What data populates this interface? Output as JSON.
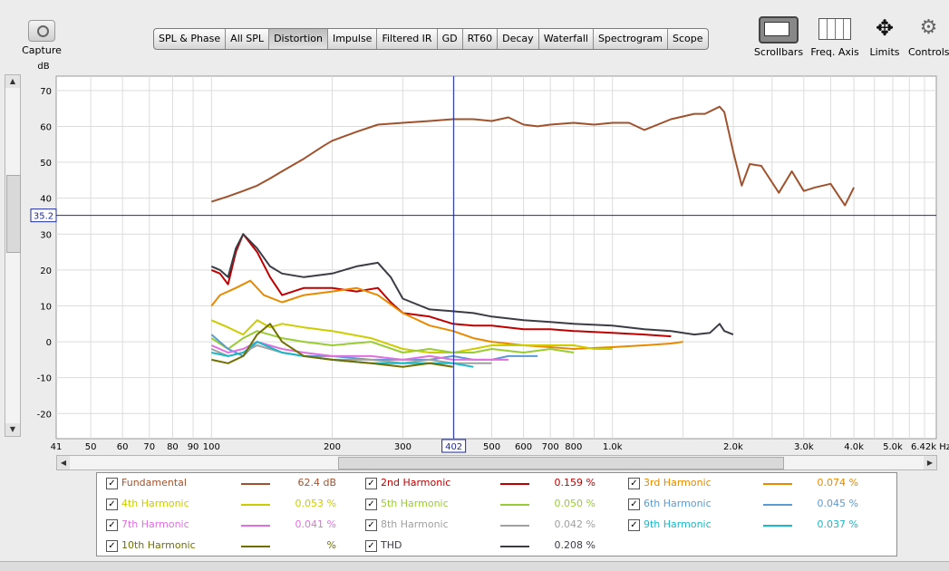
{
  "toolbar": {
    "capture_label": "Capture",
    "tabs": [
      {
        "label": "SPL & Phase",
        "active": false
      },
      {
        "label": "All SPL",
        "active": false
      },
      {
        "label": "Distortion",
        "active": true
      },
      {
        "label": "Impulse",
        "active": false
      },
      {
        "label": "Filtered IR",
        "active": false
      },
      {
        "label": "GD",
        "active": false
      },
      {
        "label": "RT60",
        "active": false
      },
      {
        "label": "Decay",
        "active": false
      },
      {
        "label": "Waterfall",
        "active": false
      },
      {
        "label": "Spectrogram",
        "active": false
      },
      {
        "label": "Scope",
        "active": false
      }
    ],
    "right_buttons": {
      "scrollbars": {
        "label": "Scrollbars",
        "icon": "scrollbars-icon"
      },
      "freq_axis": {
        "label": "Freq. Axis",
        "icon": "frequency-axis-icon"
      },
      "limits": {
        "label": "Limits",
        "icon": "limits-arrows-icon"
      },
      "controls": {
        "label": "Controls",
        "icon": "gear-icon"
      }
    }
  },
  "chart_data": {
    "type": "line",
    "ylabel": "dB",
    "xscale": "log",
    "xlim": [
      41,
      6420
    ],
    "ylim": [
      -27,
      74
    ],
    "grid": true,
    "y_ticks": [
      70,
      60,
      50,
      40,
      30,
      20,
      10,
      0,
      -10,
      -20
    ],
    "x_ticks": [
      {
        "value": 41,
        "label": "41"
      },
      {
        "value": 50,
        "label": "50"
      },
      {
        "value": 60,
        "label": "60"
      },
      {
        "value": 70,
        "label": "70"
      },
      {
        "value": 80,
        "label": "80"
      },
      {
        "value": 90,
        "label": "90"
      },
      {
        "value": 100,
        "label": "100"
      },
      {
        "value": 200,
        "label": "200"
      },
      {
        "value": 300,
        "label": "300"
      },
      {
        "value": 500,
        "label": "500"
      },
      {
        "value": 600,
        "label": "600"
      },
      {
        "value": 700,
        "label": "700"
      },
      {
        "value": 800,
        "label": "800"
      },
      {
        "value": 1000,
        "label": "1.0k"
      },
      {
        "value": 2000,
        "label": "2.0k"
      },
      {
        "value": 3000,
        "label": "3.0k"
      },
      {
        "value": 4000,
        "label": "4.0k"
      },
      {
        "value": 5000,
        "label": "5.0k"
      },
      {
        "value": 6420,
        "label": "6.42k Hz"
      }
    ],
    "cursor": {
      "x": 402,
      "y": 35.2,
      "x_label": "402",
      "y_label": "35.2"
    },
    "series": [
      {
        "name": "Fundamental",
        "color": "#a0522d",
        "x": [
          100,
          110,
          120,
          130,
          140,
          150,
          170,
          190,
          200,
          230,
          260,
          300,
          350,
          400,
          450,
          500,
          550,
          600,
          650,
          700,
          800,
          900,
          1000,
          1100,
          1200,
          1400,
          1600,
          1700,
          1850,
          1900,
          2000,
          2100,
          2200,
          2350,
          2600,
          2800,
          3000,
          3200,
          3500,
          3800,
          4000
        ],
        "y": [
          39,
          40.5,
          42,
          43.5,
          45.5,
          47.5,
          51,
          54.5,
          56,
          58.5,
          60.5,
          61,
          61.5,
          62,
          62,
          61.5,
          62.5,
          60.5,
          60,
          60.5,
          61,
          60.5,
          61,
          61,
          59,
          62,
          63.5,
          63.5,
          65.5,
          64,
          53,
          43.5,
          49.5,
          49,
          41.5,
          47.5,
          42,
          43,
          44,
          38,
          43
        ]
      },
      {
        "name": "2nd Harmonic",
        "color": "#c00000",
        "x": [
          100,
          105,
          110,
          115,
          120,
          130,
          140,
          150,
          170,
          200,
          230,
          260,
          280,
          300,
          350,
          400,
          450,
          500,
          600,
          700,
          800,
          1000,
          1200,
          1400
        ],
        "y": [
          20,
          19,
          16,
          25,
          30,
          25,
          18,
          13,
          15,
          15,
          14,
          15,
          11,
          8,
          7,
          5,
          4.5,
          4.5,
          3.5,
          3.5,
          3,
          2.5,
          2,
          1.5
        ]
      },
      {
        "name": "3rd Harmonic",
        "color": "#e88a00",
        "x": [
          100,
          105,
          115,
          125,
          135,
          150,
          170,
          200,
          230,
          260,
          300,
          350,
          400,
          450,
          500,
          600,
          700,
          800,
          1000,
          1200,
          1400,
          1500
        ],
        "y": [
          10,
          13,
          15,
          17,
          13,
          11,
          13,
          14,
          15,
          13,
          8,
          4.5,
          3,
          1,
          0,
          -1,
          -1.5,
          -2,
          -1.5,
          -1,
          -0.5,
          0
        ]
      },
      {
        "name": "4th Harmonic",
        "color": "#cccc00",
        "x": [
          100,
          110,
          120,
          130,
          140,
          150,
          170,
          200,
          250,
          300,
          350,
          400,
          450,
          500,
          600,
          700,
          800,
          900,
          1000
        ],
        "y": [
          6,
          4,
          2,
          6,
          4,
          5,
          4,
          3,
          1,
          -2,
          -3,
          -3,
          -2,
          -1,
          -1,
          -1,
          -1,
          -2,
          -2
        ]
      },
      {
        "name": "5th Harmonic",
        "color": "#99cc33",
        "x": [
          100,
          110,
          120,
          130,
          150,
          170,
          200,
          250,
          300,
          350,
          400,
          450,
          500,
          600,
          700,
          800
        ],
        "y": [
          1,
          -2,
          1,
          3,
          1,
          0,
          -1,
          0,
          -3,
          -2,
          -3,
          -3,
          -2,
          -3,
          -2,
          -3
        ]
      },
      {
        "name": "6th Harmonic",
        "color": "#5b9bd5",
        "x": [
          100,
          110,
          120,
          130,
          150,
          170,
          200,
          250,
          300,
          350,
          400,
          450,
          500,
          550,
          600,
          650
        ],
        "y": [
          2,
          -2,
          -4,
          0,
          -3,
          -4,
          -4,
          -5,
          -5,
          -5,
          -4,
          -5,
          -5,
          -4,
          -4,
          -4
        ]
      },
      {
        "name": "7th Harmonic",
        "color": "#e070e0",
        "x": [
          100,
          110,
          120,
          130,
          150,
          170,
          200,
          250,
          300,
          350,
          400,
          450,
          500,
          550
        ],
        "y": [
          -1,
          -3,
          -2,
          0,
          -2,
          -3,
          -4,
          -4,
          -5,
          -4,
          -5,
          -5,
          -5,
          -5
        ]
      },
      {
        "name": "8th Harmonic",
        "color": "#a0a0a0",
        "x": [
          100,
          110,
          120,
          130,
          150,
          170,
          200,
          250,
          300,
          350,
          400,
          450,
          500
        ],
        "y": [
          -2,
          -4,
          -3,
          -1,
          -3,
          -4,
          -5,
          -5,
          -6,
          -5,
          -6,
          -6,
          -6
        ]
      },
      {
        "name": "9th Harmonic",
        "color": "#1ab8c8",
        "x": [
          100,
          110,
          120,
          130,
          150,
          170,
          200,
          250,
          300,
          350,
          400,
          450
        ],
        "y": [
          -3,
          -4,
          -3,
          0,
          -3,
          -4,
          -5,
          -6,
          -6,
          -6,
          -6,
          -7
        ]
      },
      {
        "name": "10th Harmonic",
        "color": "#707000",
        "x": [
          100,
          110,
          120,
          130,
          140,
          150,
          170,
          200,
          250,
          300,
          350,
          400
        ],
        "y": [
          -5,
          -6,
          -4,
          2,
          5,
          0,
          -4,
          -5,
          -6,
          -7,
          -6,
          -7
        ]
      },
      {
        "name": "THD",
        "color": "#3c3c46",
        "x": [
          100,
          105,
          110,
          115,
          120,
          130,
          140,
          150,
          170,
          200,
          230,
          260,
          280,
          300,
          350,
          400,
          450,
          500,
          600,
          700,
          800,
          1000,
          1200,
          1400,
          1500,
          1600,
          1750,
          1850,
          1900,
          2000
        ],
        "y": [
          21,
          20,
          18,
          26,
          30,
          26,
          21,
          19,
          18,
          19,
          21,
          22,
          18,
          12,
          9,
          8.5,
          8,
          7,
          6,
          5.5,
          5,
          4.5,
          3.5,
          3,
          2.5,
          2,
          2.5,
          5,
          3,
          2
        ]
      }
    ]
  },
  "legend": [
    {
      "name": "Fundamental",
      "checked": true,
      "value": "62.4 dB",
      "color": "#a0522d"
    },
    {
      "name": "2nd Harmonic",
      "checked": true,
      "value": "0.159 %",
      "color": "#c00000"
    },
    {
      "name": "3rd Harmonic",
      "checked": true,
      "value": "0.074 %",
      "color": "#e88a00"
    },
    {
      "name": "4th Harmonic",
      "checked": true,
      "value": "0.053 %",
      "color": "#cccc00"
    },
    {
      "name": "5th Harmonic",
      "checked": true,
      "value": "0.050 %",
      "color": "#99cc33"
    },
    {
      "name": "6th Harmonic",
      "checked": true,
      "value": "0.045 %",
      "color": "#5b9bd5"
    },
    {
      "name": "7th Harmonic",
      "checked": true,
      "value": "0.041 %",
      "color": "#e070e0"
    },
    {
      "name": "8th Harmonic",
      "checked": true,
      "value": "0.042 %",
      "color": "#a0a0a0"
    },
    {
      "name": "9th Harmonic",
      "checked": true,
      "value": "0.037 %",
      "color": "#1ab8c8"
    },
    {
      "name": "10th Harmonic",
      "checked": true,
      "value": "%",
      "color": "#707000"
    },
    {
      "name": "THD",
      "checked": true,
      "value": "0.208 %",
      "color": "#3c3c46"
    }
  ]
}
